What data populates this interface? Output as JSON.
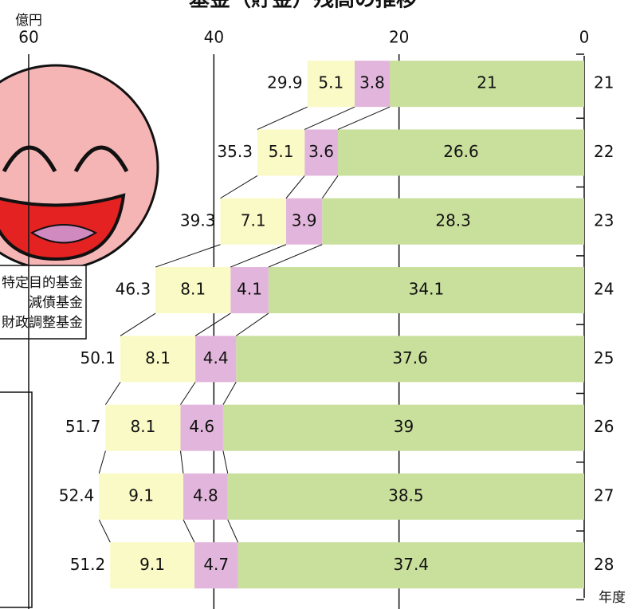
{
  "chart_data": {
    "type": "stacked-hbar",
    "title": "基金（貯金）残高の推移",
    "x_label": "億円",
    "y_label": "年度",
    "categories": [
      "21",
      "22",
      "23",
      "24",
      "25",
      "26",
      "27",
      "28"
    ],
    "series": [
      {
        "name": "財政調整基金",
        "color": "#c9df9c",
        "values": [
          21.0,
          26.6,
          28.3,
          34.1,
          37.6,
          39.0,
          38.5,
          37.4
        ]
      },
      {
        "name": "減債基金",
        "color": "#e2b6dc",
        "values": [
          3.8,
          3.6,
          3.9,
          4.1,
          4.4,
          4.6,
          4.8,
          4.7
        ]
      },
      {
        "name": "特定目的基金",
        "color": "#fafac6",
        "values": [
          5.1,
          5.1,
          7.1,
          8.1,
          8.1,
          8.1,
          9.1,
          9.1
        ]
      }
    ],
    "totals": [
      29.9,
      35.3,
      39.3,
      46.3,
      50.1,
      51.7,
      52.4,
      51.2
    ],
    "xlim": [
      0,
      60
    ],
    "xticks": [
      0,
      20,
      40,
      60
    ],
    "reversed": true
  }
}
